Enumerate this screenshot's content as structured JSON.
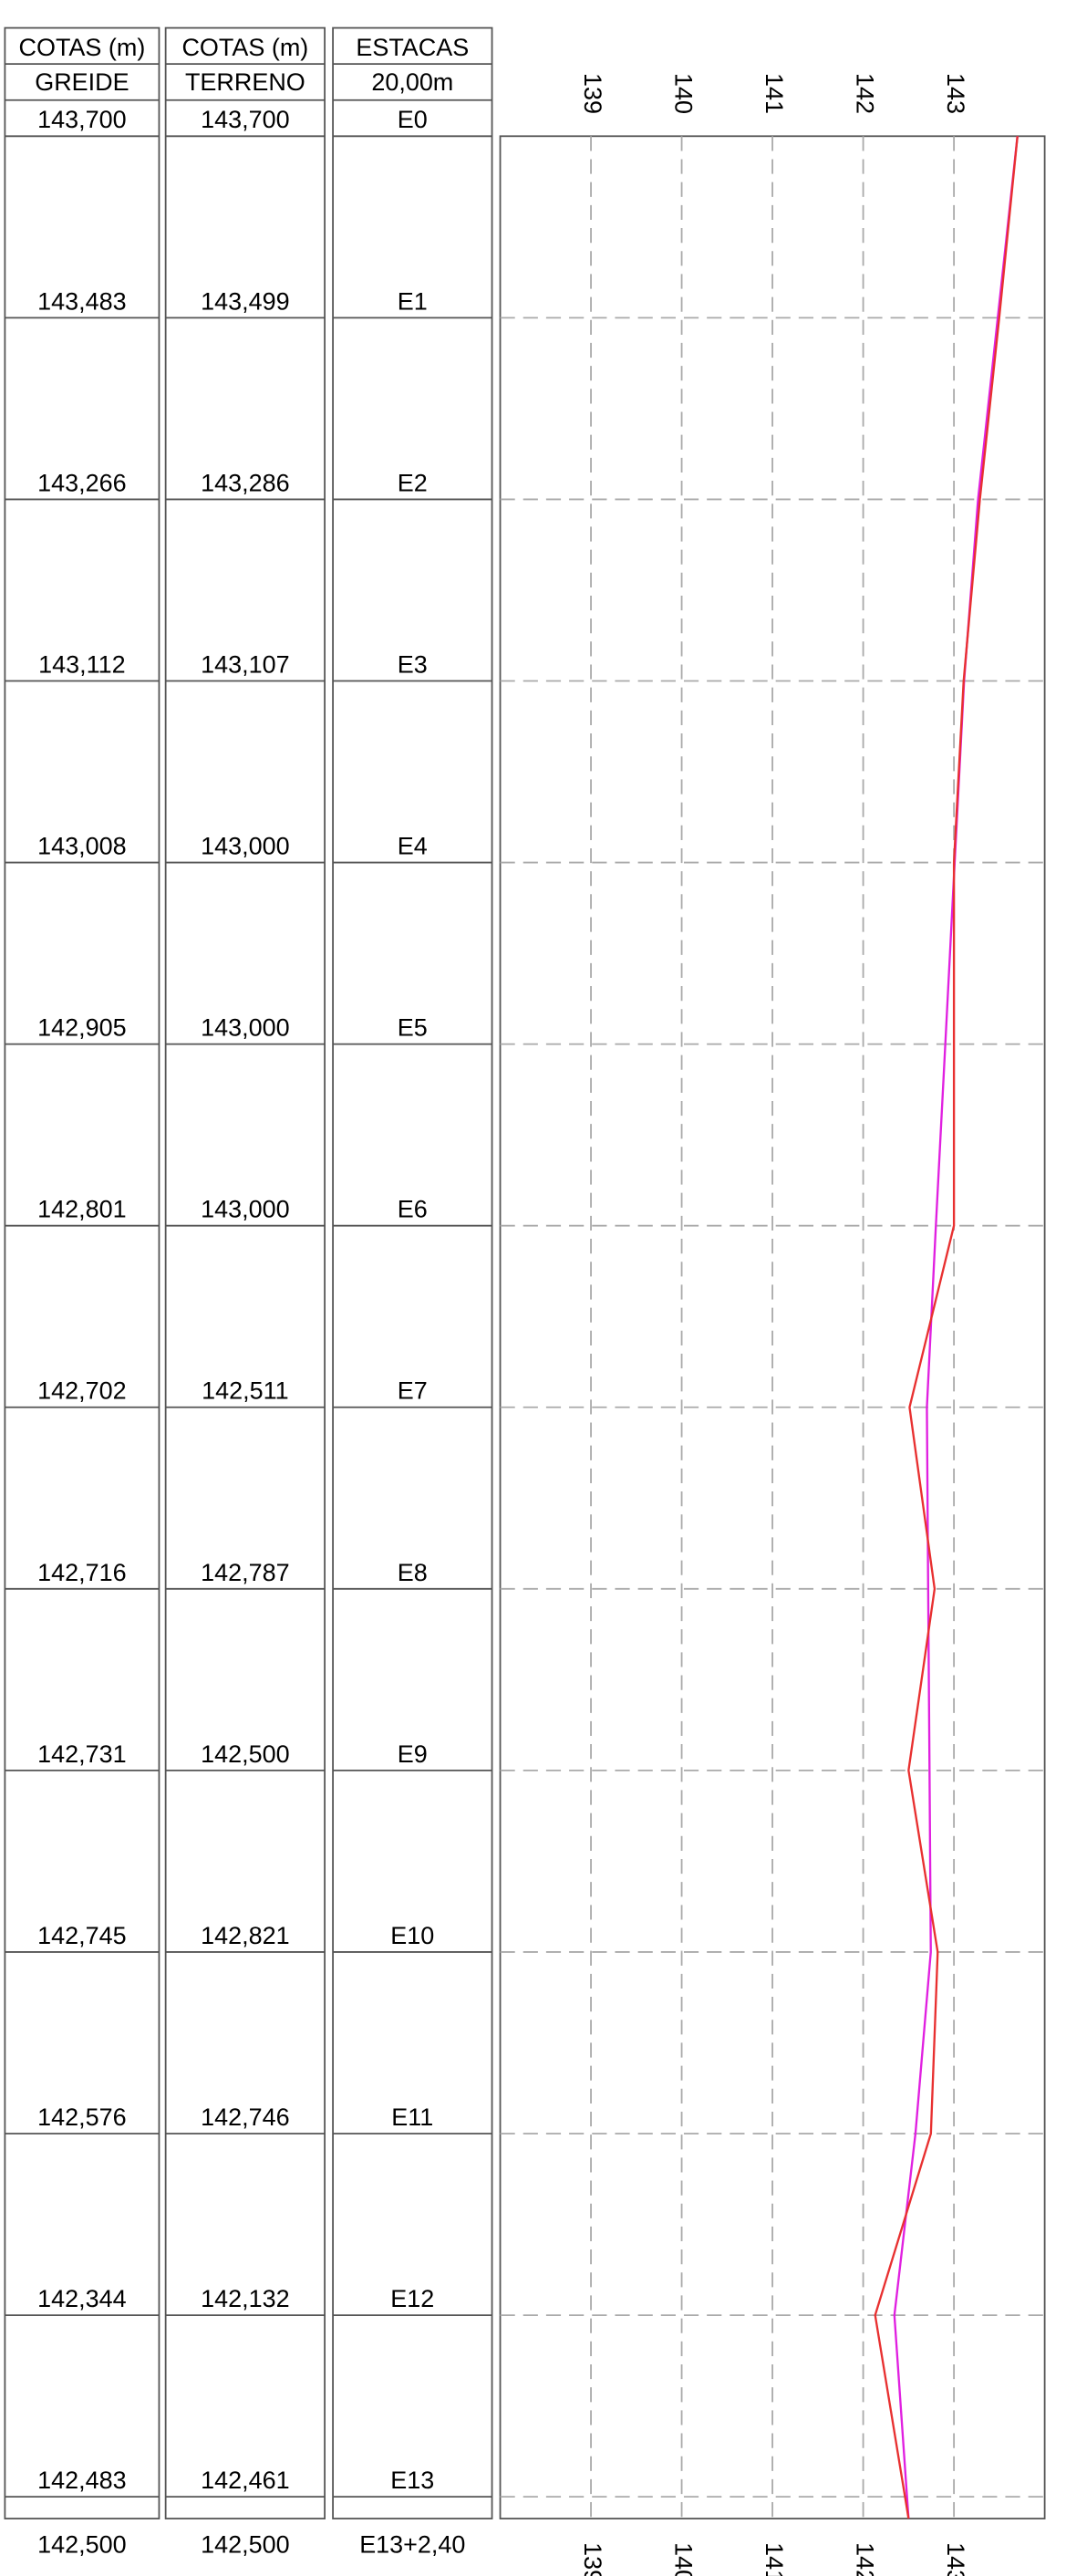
{
  "chart_data": {
    "type": "profile",
    "table_headers": [
      "COTAS (m)",
      "COTAS (m)",
      "ESTACAS"
    ],
    "station_header": "20,00m",
    "categories": [
      "E0",
      "E1",
      "E2",
      "E3",
      "E4",
      "E5",
      "E6",
      "E7",
      "E8",
      "E9",
      "E10",
      "E11",
      "E12",
      "E13",
      "E13+2,40"
    ],
    "x": [
      0,
      20,
      40,
      60,
      80,
      100,
      120,
      140,
      160,
      180,
      200,
      220,
      240,
      260,
      262.4
    ],
    "ylim": [
      0,
      262.4
    ],
    "xlim": [
      138,
      144
    ],
    "xticks": [
      139,
      140,
      141,
      142,
      143
    ],
    "grid": true,
    "series": [
      {
        "name": "GREIDE",
        "color": "#e020e0",
        "values": [
          143.7,
          143.483,
          143.266,
          143.112,
          143.008,
          142.905,
          142.801,
          142.702,
          142.716,
          142.731,
          142.745,
          142.576,
          142.344,
          142.483,
          142.5
        ],
        "value_labels": [
          "143,700",
          "143,483",
          "143,266",
          "143,112",
          "143,008",
          "142,905",
          "142,801",
          "142,702",
          "142,716",
          "142,731",
          "142,745",
          "142,576",
          "142,344",
          "142,483",
          "142,500"
        ]
      },
      {
        "name": "TERRENO",
        "color": "#e83030",
        "values": [
          143.7,
          143.499,
          143.286,
          143.107,
          143.0,
          143.0,
          143.0,
          142.511,
          142.787,
          142.5,
          142.821,
          142.746,
          142.132,
          142.461,
          142.5
        ],
        "value_labels": [
          "143,700",
          "143,499",
          "143,286",
          "143,107",
          "143,000",
          "143,000",
          "143,000",
          "142,511",
          "142,787",
          "142,500",
          "142,821",
          "142,746",
          "142,132",
          "142,461",
          "142,500"
        ]
      }
    ]
  }
}
